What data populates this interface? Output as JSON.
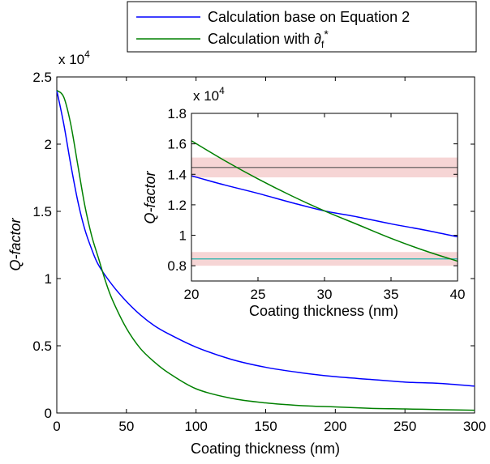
{
  "chart_data": [
    {
      "type": "line",
      "title": "",
      "xlabel": "Coating thickness (nm)",
      "ylabel": "Q-factor",
      "y_multiplier": "x 10",
      "y_exponent": "4",
      "xlim": [
        0,
        300
      ],
      "ylim": [
        0,
        2.5
      ],
      "xticks": [
        0,
        50,
        100,
        150,
        200,
        250,
        300
      ],
      "yticks": [
        0,
        0.5,
        1,
        1.5,
        2,
        2.5
      ],
      "xtick_labels": [
        "0",
        "50",
        "100",
        "150",
        "200",
        "250",
        "300"
      ],
      "ytick_labels": [
        "0",
        "0.5",
        "1",
        "1.5",
        "2",
        "2.5"
      ],
      "series": [
        {
          "name": "Calculation base on Equation 2",
          "color": "#0000ff",
          "x": [
            0,
            5,
            10,
            15,
            20,
            25,
            30,
            40,
            50,
            60,
            70,
            80,
            100,
            125,
            150,
            175,
            200,
            225,
            250,
            275,
            300
          ],
          "y": [
            2.4,
            2.15,
            1.85,
            1.58,
            1.37,
            1.22,
            1.1,
            0.95,
            0.83,
            0.73,
            0.65,
            0.59,
            0.49,
            0.4,
            0.34,
            0.3,
            0.27,
            0.25,
            0.23,
            0.22,
            0.2
          ]
        },
        {
          "name": "Calculation with ∂f*",
          "color": "#008000",
          "x": [
            0,
            5,
            10,
            15,
            20,
            25,
            30,
            35,
            40,
            50,
            60,
            70,
            80,
            100,
            125,
            150,
            175,
            200,
            225,
            250,
            275,
            300
          ],
          "y": [
            2.4,
            2.35,
            2.15,
            1.85,
            1.55,
            1.32,
            1.15,
            0.98,
            0.84,
            0.63,
            0.48,
            0.38,
            0.3,
            0.18,
            0.11,
            0.075,
            0.055,
            0.045,
            0.035,
            0.03,
            0.025,
            0.02
          ]
        }
      ],
      "legend": {
        "position": "top-right",
        "entries": [
          "Calculation base on Equation 2",
          "Calculation with "
        ],
        "symbol_main": "∂",
        "symbol_sub": "f",
        "symbol_sup": "*"
      }
    },
    {
      "type": "line",
      "title": "",
      "placement": "inset",
      "xlabel": "Coating thickness (nm)",
      "ylabel": "Q-factor",
      "y_multiplier": "x 10",
      "y_exponent": "4",
      "xlim": [
        20,
        40
      ],
      "ylim": [
        0.7,
        1.8
      ],
      "xticks": [
        20,
        25,
        30,
        35,
        40
      ],
      "yticks": [
        0.8,
        1,
        1.2,
        1.4,
        1.6,
        1.8
      ],
      "xtick_labels": [
        "20",
        "25",
        "30",
        "35",
        "40"
      ],
      "ytick_labels": [
        "0.8",
        "1",
        "1.2",
        "1.4",
        "1.6",
        "1.8"
      ],
      "series": [
        {
          "name": "blue",
          "color": "#0000ff",
          "x": [
            20,
            22.5,
            25,
            27.5,
            30,
            32.5,
            35,
            37.5,
            40
          ],
          "y": [
            1.39,
            1.33,
            1.275,
            1.215,
            1.16,
            1.12,
            1.075,
            1.035,
            0.99
          ]
        },
        {
          "name": "green",
          "color": "#008000",
          "x": [
            20,
            22.5,
            25,
            27.5,
            30,
            32.5,
            35,
            37.5,
            40
          ],
          "y": [
            1.62,
            1.49,
            1.37,
            1.26,
            1.16,
            1.07,
            0.98,
            0.9,
            0.83
          ]
        }
      ],
      "reference_bands": [
        {
          "y": 1.445,
          "low": 1.38,
          "high": 1.51,
          "line_color": "#555555",
          "band_color": "#f6d5d5"
        },
        {
          "y": 0.845,
          "low": 0.8,
          "high": 0.89,
          "line_color": "#20b2aa",
          "band_color": "#f6d5d5"
        }
      ]
    }
  ]
}
